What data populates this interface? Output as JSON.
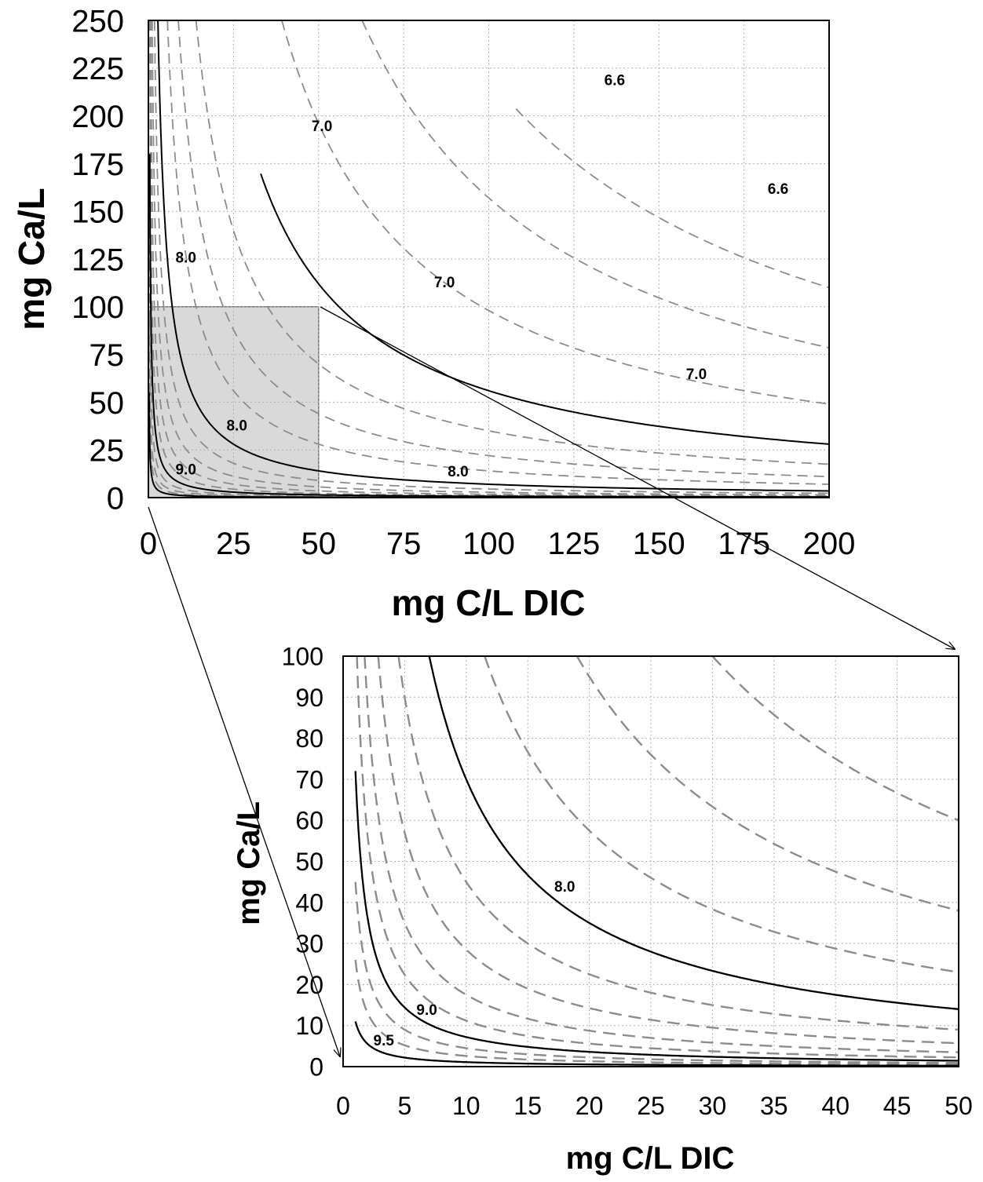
{
  "chart_data": [
    {
      "type": "line",
      "xlabel": "mg C/L DIC",
      "ylabel": "mg Ca/L",
      "xlim": [
        0,
        200
      ],
      "ylim": [
        0,
        250
      ],
      "xticks": [
        "0",
        "25",
        "50",
        "75",
        "100",
        "125",
        "150",
        "175",
        "200"
      ],
      "yticks": [
        "0",
        "25",
        "50",
        "75",
        "100",
        "125",
        "150",
        "175",
        "200",
        "225",
        "250"
      ],
      "grid": true,
      "zoom_region": {
        "x": [
          0,
          50
        ],
        "y": [
          0,
          100
        ]
      },
      "solid_curves": [
        {
          "name": "7.0",
          "k": 5600,
          "xmin": 33
        },
        {
          "name": "8.0",
          "k": 700,
          "xmin": 2.8
        },
        {
          "name": "9.0",
          "k": 72,
          "xmin": 0.4
        },
        {
          "name": "9.5",
          "k": 11,
          "xmin": 0.2
        }
      ],
      "dashed_curves": [
        {
          "k": 22000,
          "xmin": 108
        },
        {
          "k": 15700,
          "xmin": 60
        },
        {
          "k": 9800,
          "xmin": 39
        },
        {
          "k": 3500,
          "xmin": 14
        },
        {
          "k": 2200,
          "xmin": 8.8
        },
        {
          "k": 1400,
          "xmin": 5.6
        },
        {
          "k": 450,
          "xmin": 1.8
        },
        {
          "k": 280,
          "xmin": 1.12
        },
        {
          "k": 175,
          "xmin": 0.7
        },
        {
          "k": 110,
          "xmin": 0.44
        },
        {
          "k": 45,
          "xmin": 0.3
        },
        {
          "k": 28,
          "xmin": 0.3
        },
        {
          "k": 18,
          "xmin": 0.3
        }
      ],
      "contour_labels": [
        {
          "text": "6.6",
          "x": 137,
          "y": 219
        },
        {
          "text": "6.6",
          "x": 185,
          "y": 162
        },
        {
          "text": "7.0",
          "x": 51,
          "y": 195
        },
        {
          "text": "7.0",
          "x": 87,
          "y": 113
        },
        {
          "text": "7.0",
          "x": 161,
          "y": 65
        },
        {
          "text": "8.0",
          "x": 11,
          "y": 126
        },
        {
          "text": "8.0",
          "x": 26,
          "y": 38
        },
        {
          "text": "8.0",
          "x": 91,
          "y": 14
        },
        {
          "text": "9.0",
          "x": 11,
          "y": 15
        }
      ]
    },
    {
      "type": "line",
      "xlabel": "mg C/L DIC",
      "ylabel": "mg Ca/L",
      "xlim": [
        0,
        50
      ],
      "ylim": [
        0,
        100
      ],
      "xticks": [
        "0",
        "5",
        "10",
        "15",
        "20",
        "25",
        "30",
        "35",
        "40",
        "45",
        "50"
      ],
      "yticks": [
        "0",
        "10",
        "20",
        "30",
        "40",
        "50",
        "60",
        "70",
        "80",
        "90",
        "100"
      ],
      "grid": true,
      "solid_curves": [
        {
          "name": "8.0",
          "k": 700,
          "xmin": 7
        },
        {
          "name": "9.0",
          "k": 72,
          "xmin": 1
        },
        {
          "name": "9.5",
          "k": 11,
          "xmin": 1
        }
      ],
      "dashed_curves": [
        {
          "k": 3000,
          "xmin": 30
        },
        {
          "k": 1900,
          "xmin": 19
        },
        {
          "k": 1150,
          "xmin": 11.5
        },
        {
          "k": 450,
          "xmin": 4.5
        },
        {
          "k": 285,
          "xmin": 2.85
        },
        {
          "k": 175,
          "xmin": 1.75
        },
        {
          "k": 112,
          "xmin": 1.12
        },
        {
          "k": 45,
          "xmin": 1
        },
        {
          "k": 26,
          "xmin": 1
        }
      ],
      "contour_labels": [
        {
          "text": "8.0",
          "x": 18,
          "y": 44
        },
        {
          "text": "9.0",
          "x": 6.8,
          "y": 14
        },
        {
          "text": "9.5",
          "x": 3.3,
          "y": 6.5
        }
      ]
    }
  ]
}
